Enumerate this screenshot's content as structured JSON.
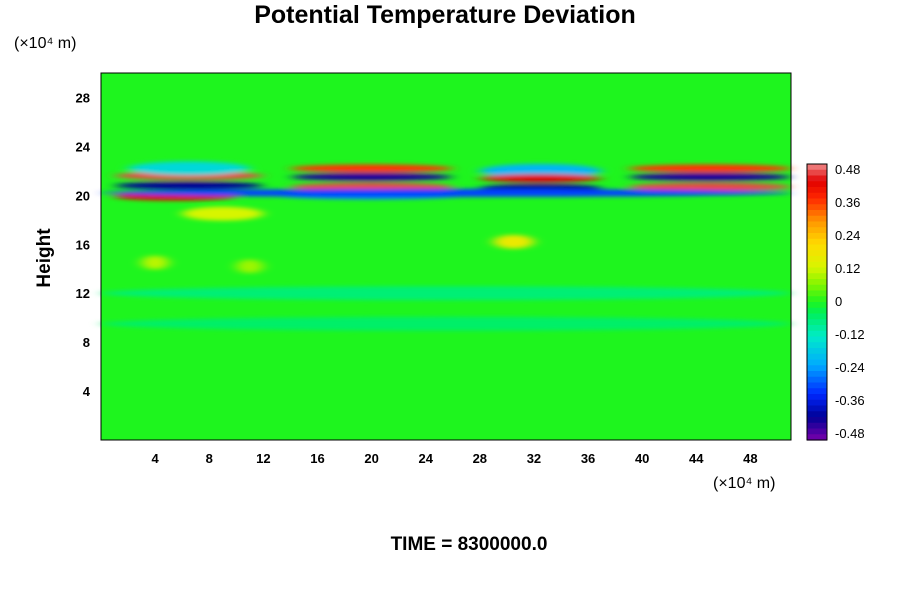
{
  "chart_data": {
    "type": "heatmap",
    "title": "Potential Temperature Deviation",
    "ylabel": "Height",
    "xlabel": "",
    "y_unit": "(×10⁴ m)",
    "x_unit": "(×10⁴ m)",
    "xlim": [
      0,
      51
    ],
    "ylim": [
      0,
      30
    ],
    "xticks": [
      4,
      8,
      12,
      16,
      20,
      24,
      28,
      32,
      36,
      40,
      44,
      48
    ],
    "yticks": [
      4,
      8,
      12,
      16,
      20,
      24,
      28
    ],
    "grid": false,
    "background_value": 0.0,
    "colorbar": {
      "placement": "right",
      "ticks": [
        "0.48",
        "0.36",
        "0.24",
        "0.12",
        "0",
        "-0.12",
        "-0.24",
        "-0.36",
        "-0.48"
      ],
      "range": [
        -0.48,
        0.48
      ]
    },
    "features": [
      {
        "x0": 1,
        "x1": 12,
        "y": 21.6,
        "value": 0.45
      },
      {
        "x0": 1,
        "x1": 12,
        "y": 20.8,
        "value": -0.4
      },
      {
        "x0": 1,
        "x1": 10,
        "y": 19.9,
        "value": 0.42
      },
      {
        "x0": 2,
        "x1": 11,
        "y": 22.2,
        "value": -0.15
      },
      {
        "x0": 14,
        "x1": 26,
        "y": 22.2,
        "value": 0.35
      },
      {
        "x0": 14,
        "x1": 26,
        "y": 21.5,
        "value": -0.42
      },
      {
        "x0": 14,
        "x1": 26,
        "y": 20.7,
        "value": 0.45
      },
      {
        "x0": 13,
        "x1": 27,
        "y": 20.0,
        "value": -0.25
      },
      {
        "x0": 28,
        "x1": 37,
        "y": 22.0,
        "value": -0.2
      },
      {
        "x0": 28,
        "x1": 37,
        "y": 21.4,
        "value": 0.42
      },
      {
        "x0": 28,
        "x1": 37,
        "y": 20.6,
        "value": -0.4
      },
      {
        "x0": 39,
        "x1": 51,
        "y": 22.2,
        "value": 0.35
      },
      {
        "x0": 39,
        "x1": 51,
        "y": 21.5,
        "value": -0.42
      },
      {
        "x0": 39,
        "x1": 51,
        "y": 20.7,
        "value": 0.45
      },
      {
        "x0": 0,
        "x1": 51,
        "y": 20.2,
        "value": -0.3
      },
      {
        "x0": 6,
        "x1": 12,
        "y": 18.5,
        "value": 0.12
      },
      {
        "x0": 29,
        "x1": 32,
        "y": 16.2,
        "value": 0.16
      },
      {
        "x0": 3,
        "x1": 5,
        "y": 14.5,
        "value": 0.1
      },
      {
        "x0": 10,
        "x1": 12,
        "y": 14.2,
        "value": 0.08
      },
      {
        "x0": 0,
        "x1": 51,
        "y": 12.0,
        "value": -0.06
      },
      {
        "x0": 0,
        "x1": 51,
        "y": 9.5,
        "value": -0.05
      }
    ]
  },
  "footer": {
    "time_label": "TIME = 8300000.0"
  }
}
